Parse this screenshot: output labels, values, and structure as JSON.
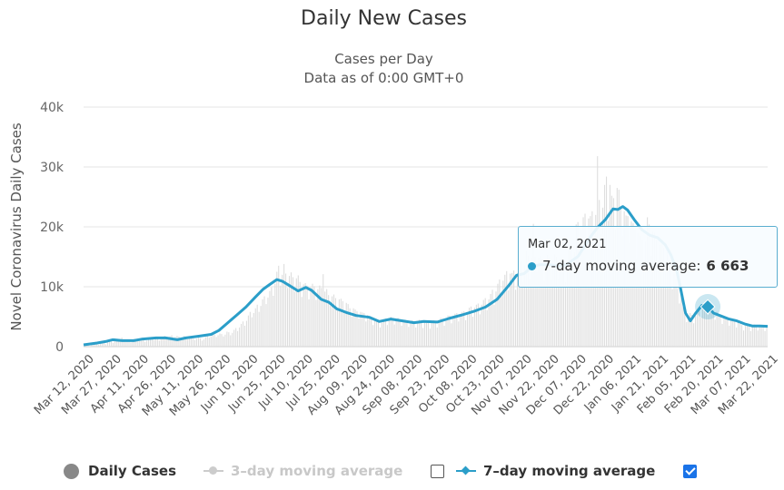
{
  "chart_data": {
    "type": "line",
    "title": "Daily New Cases",
    "subtitle": [
      "Cases per Day",
      "Data as of 0:00 GMT+0"
    ],
    "ylabel": "Novel Coronavirus Daily Cases",
    "xlabel": "",
    "ylim": [
      0,
      40000
    ],
    "y_ticks": [
      "0",
      "10k",
      "20k",
      "30k",
      "40k"
    ],
    "x_ticks": [
      "Mar 12, 2020",
      "Mar 27, 2020",
      "Apr 11, 2020",
      "Apr 26, 2020",
      "May 11, 2020",
      "May 26, 2020",
      "Jun 10, 2020",
      "Jun 25, 2020",
      "Jul 10, 2020",
      "Jul 25, 2020",
      "Aug 09, 2020",
      "Aug 24, 2020",
      "Sep 08, 2020",
      "Sep 23, 2020",
      "Oct 08, 2020",
      "Oct 23, 2020",
      "Nov 07, 2020",
      "Nov 22, 2020",
      "Dec 07, 2020",
      "Dec 22, 2020",
      "Jan 06, 2021",
      "Jan 21, 2021",
      "Feb 05, 2021",
      "Feb 20, 2021",
      "Mar 07, 2021",
      "Mar 22, 2021"
    ],
    "grid": true,
    "legend_position": "bottom",
    "series": [
      {
        "name": "Daily Cases",
        "type": "bar",
        "visible": true,
        "color": "#dddddd",
        "values": [
          300,
          200,
          400,
          100,
          300,
          500,
          400,
          600,
          300,
          500,
          700,
          900,
          400,
          800,
          1200,
          1000,
          600,
          1400,
          1300,
          900,
          1200,
          1500,
          1100,
          800,
          900,
          1100,
          700,
          1200,
          1300,
          1000,
          900,
          1100,
          1400,
          1200,
          800,
          1000,
          1200,
          1300,
          1500,
          1100,
          1300,
          1400,
          1000,
          1200,
          1600,
          1800,
          1300,
          1500,
          1700,
          1900,
          1400,
          1600,
          1800,
          1700,
          1300,
          1500,
          1800,
          1700,
          1200,
          1400,
          1600,
          1300,
          1100,
          1300,
          1500,
          1400,
          1000,
          1200,
          1600,
          1900,
          1500,
          1700,
          2100,
          2000,
          1600,
          1900,
          2200,
          2100,
          1700,
          2000,
          2500,
          2400,
          1900,
          2300,
          2800,
          3100,
          2600,
          3200,
          3800,
          4200,
          3500,
          4300,
          5200,
          5800,
          4900,
          5600,
          6400,
          7000,
          5800,
          6800,
          7900,
          8400,
          7100,
          8200,
          9300,
          9900,
          8500,
          10500,
          12500,
          13500,
          10200,
          12000,
          13800,
          12200,
          9800,
          11800,
          12400,
          11600,
          9200,
          11400,
          11900,
          10800,
          8300,
          10400,
          10600,
          10200,
          7900,
          9900,
          10500,
          10100,
          7800,
          9600,
          10200,
          9800,
          12100,
          9200,
          9600,
          8600,
          6800,
          8400,
          8700,
          8100,
          6400,
          7900,
          8000,
          7600,
          5900,
          7300,
          7100,
          6400,
          5000,
          6400,
          6200,
          5900,
          4700,
          5800,
          5700,
          5600,
          4200,
          5300,
          5100,
          4900,
          3600,
          4700,
          4300,
          4100,
          3200,
          4000,
          4600,
          4700,
          3600,
          4500,
          5000,
          4800,
          3700,
          4600,
          4800,
          4500,
          3500,
          4400,
          4500,
          4300,
          3300,
          4200,
          4400,
          4100,
          3200,
          4100,
          4500,
          4200,
          3100,
          4000,
          4300,
          4100,
          3000,
          4000,
          4400,
          4300,
          3200,
          4200,
          4800,
          4700,
          3500,
          4600,
          5200,
          5200,
          3900,
          5100,
          5500,
          5600,
          4200,
          5400,
          5800,
          5900,
          4400,
          5700,
          6500,
          6700,
          5000,
          6500,
          7000,
          7200,
          5400,
          7000,
          7800,
          8100,
          6100,
          7900,
          8800,
          9500,
          7000,
          9200,
          10500,
          11200,
          8400,
          11000,
          12000,
          12600,
          9400,
          12200,
          12300,
          12700,
          9500,
          12300,
          14500,
          14200,
          10800,
          13600,
          16000,
          15200,
          11400,
          14800,
          20500,
          15000,
          12400,
          14900,
          15200,
          14700,
          11000,
          14300,
          15300,
          14900,
          11200,
          14500,
          15400,
          15000,
          11300,
          14600,
          14800,
          14400,
          10800,
          14000,
          16500,
          16200,
          12100,
          15800,
          20400,
          20800,
          14500,
          19500,
          21600,
          22200,
          16500,
          21400,
          21800,
          22600,
          16500,
          22000,
          31800,
          24500,
          18800,
          23200,
          27000,
          28400,
          21000,
          27000,
          25200,
          24800,
          19600,
          26500,
          26200,
          23400,
          18400,
          22600,
          21900,
          21800,
          17300,
          20900,
          20600,
          19600,
          14800,
          19000,
          18500,
          17800,
          13600,
          17600,
          21600,
          20400,
          15200,
          19200,
          19000,
          17800,
          13400,
          17000,
          17200,
          16500,
          12400,
          15800,
          14000,
          12800,
          9600,
          12200,
          11200,
          9800,
          7200,
          9200,
          6600,
          5800,
          4100,
          5200,
          5600,
          5300,
          3900,
          5100,
          6000,
          6500,
          4900,
          6400,
          7100,
          7200,
          5300,
          7000,
          6400,
          6000,
          4500,
          5800,
          5200,
          5000,
          3800,
          4900,
          4800,
          4700,
          3500,
          4600,
          4500,
          4300,
          3200,
          4100,
          3800,
          3600,
          2700,
          3500,
          3600,
          3500,
          2600,
          3400,
          3700,
          3600,
          2700,
          3500,
          3500,
          3400,
          2600,
          3300
        ]
      },
      {
        "name": "3-day moving average",
        "type": "line",
        "visible": false,
        "color": "#cccccc",
        "values": []
      },
      {
        "name": "7-day moving average",
        "type": "line",
        "visible": true,
        "color": "#2b9ec9",
        "points": [
          [
            0,
            300
          ],
          [
            14,
            600
          ],
          [
            24,
            900
          ],
          [
            30,
            1150
          ],
          [
            40,
            1000
          ],
          [
            52,
            1000
          ],
          [
            60,
            1250
          ],
          [
            75,
            1450
          ],
          [
            85,
            1450
          ],
          [
            97,
            1150
          ],
          [
            106,
            1450
          ],
          [
            120,
            1750
          ],
          [
            132,
            2050
          ],
          [
            140,
            2700
          ],
          [
            148,
            3800
          ],
          [
            158,
            5200
          ],
          [
            168,
            6600
          ],
          [
            178,
            8300
          ],
          [
            186,
            9600
          ],
          [
            192,
            10300
          ],
          [
            200,
            11200
          ],
          [
            206,
            10900
          ],
          [
            214,
            10100
          ],
          [
            222,
            9300
          ],
          [
            230,
            9900
          ],
          [
            236,
            9400
          ],
          [
            246,
            7900
          ],
          [
            254,
            7400
          ],
          [
            262,
            6300
          ],
          [
            272,
            5700
          ],
          [
            282,
            5200
          ],
          [
            296,
            4900
          ],
          [
            306,
            4200
          ],
          [
            318,
            4600
          ],
          [
            330,
            4300
          ],
          [
            342,
            4000
          ],
          [
            352,
            4200
          ],
          [
            366,
            4100
          ],
          [
            378,
            4700
          ],
          [
            392,
            5300
          ],
          [
            404,
            5900
          ],
          [
            416,
            6600
          ],
          [
            428,
            7900
          ],
          [
            440,
            10200
          ],
          [
            448,
            11900
          ],
          [
            456,
            12200
          ],
          [
            464,
            13300
          ],
          [
            472,
            13700
          ],
          [
            482,
            13700
          ],
          [
            492,
            13400
          ],
          [
            500,
            13700
          ],
          [
            512,
            15100
          ],
          [
            524,
            18200
          ],
          [
            532,
            19900
          ],
          [
            540,
            21200
          ],
          [
            548,
            23000
          ],
          [
            553,
            22900
          ],
          [
            558,
            23400
          ],
          [
            563,
            22800
          ],
          [
            570,
            21200
          ],
          [
            578,
            19500
          ],
          [
            586,
            18600
          ],
          [
            594,
            18200
          ],
          [
            602,
            17000
          ],
          [
            608,
            15300
          ],
          [
            614,
            12600
          ],
          [
            618,
            9600
          ],
          [
            623,
            5600
          ],
          [
            628,
            4300
          ],
          [
            634,
            5700
          ],
          [
            640,
            6900
          ],
          [
            646,
            6663
          ],
          [
            652,
            5600
          ],
          [
            660,
            5100
          ],
          [
            668,
            4600
          ],
          [
            676,
            4300
          ],
          [
            684,
            3800
          ],
          [
            692,
            3450
          ],
          [
            700,
            3450
          ],
          [
            708,
            3400
          ]
        ]
      }
    ],
    "tooltip": {
      "date": "Mar 02, 2021",
      "series": "7-day moving average",
      "value_text": "6 663"
    }
  },
  "legend": {
    "daily_cases": "Daily Cases",
    "three_day": "3–day moving average",
    "seven_day": "7–day moving average"
  },
  "colors": {
    "line": "#2b9ec9",
    "bars": "#dddddd",
    "grid": "#e6e6e6",
    "checkbox": "#1a73e8"
  }
}
